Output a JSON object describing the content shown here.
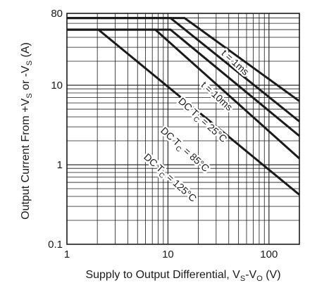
{
  "chart_data": {
    "type": "line",
    "x_scale": "log",
    "y_scale": "log",
    "xlim": [
      1,
      200
    ],
    "ylim": [
      0.1,
      80
    ],
    "grid": true,
    "xlabel": {
      "main": "Supply to Output Differential, V",
      "sub1": "S",
      "mid": "-V",
      "sub2": "O",
      "unit": " (V)"
    },
    "ylabel": {
      "main": "Output Current From +V",
      "sub1": "S",
      "mid": " or -V",
      "sub2": "S",
      "unit": " (A)"
    },
    "x_ticks": [
      {
        "value": 1,
        "label": "1"
      },
      {
        "value": 10,
        "label": "10"
      },
      {
        "value": 100,
        "label": "100"
      }
    ],
    "y_ticks": [
      {
        "value": 0.1,
        "label": "0.1"
      },
      {
        "value": 1,
        "label": "1"
      },
      {
        "value": 10,
        "label": "10"
      },
      {
        "value": 80,
        "label": "80"
      }
    ],
    "series": [
      {
        "name": "t = 1ms",
        "x": [
          1,
          14.6,
          200
        ],
        "y": [
          70,
          70,
          6.3
        ]
      },
      {
        "name": "t = 10ms",
        "x": [
          1,
          10.6,
          200
        ],
        "y": [
          70,
          70,
          3.5
        ]
      },
      {
        "name": "DC T_C = 25°C",
        "x": [
          1,
          10.6,
          200
        ],
        "y": [
          50,
          50,
          2.3
        ]
      },
      {
        "name": "DC T_C = 85°C",
        "x": [
          1,
          7.5,
          200
        ],
        "y": [
          50,
          50,
          1.2
        ]
      },
      {
        "name": "DC T_C = 125°C",
        "x": [
          1,
          2.05,
          200
        ],
        "y": [
          50,
          50,
          0.42
        ]
      }
    ],
    "annotations": [
      {
        "id": "t1ms",
        "label": "t = 1ms",
        "x": 44,
        "y": 18
      },
      {
        "id": "t10ms",
        "label": "t = 10ms",
        "x": 29,
        "y": 6.8
      },
      {
        "id": "dc25",
        "label": "DC T",
        "sub": "C",
        "tail": " = 25°C",
        "x": 21,
        "y": 3.4
      },
      {
        "id": "dc85",
        "label": "DC T",
        "sub": "C",
        "tail": " = 85°C",
        "x": 14,
        "y": 1.45
      },
      {
        "id": "dc125",
        "label": "DC T",
        "sub": "C",
        "tail": " = 125°C",
        "x": 10,
        "y": 0.64
      }
    ]
  }
}
